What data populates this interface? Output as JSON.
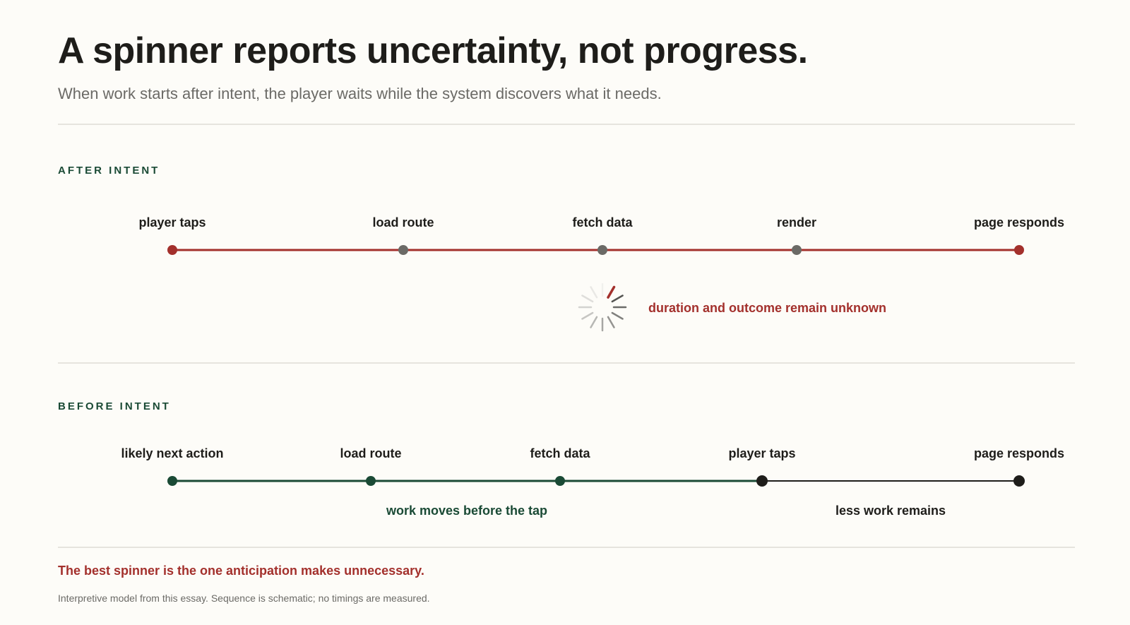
{
  "title": "A spinner reports uncertainty, not progress.",
  "subtitle": "When work starts after intent, the player waits while the system discovers what it needs.",
  "colors": {
    "red": "#a3302c",
    "green": "#1a4a35",
    "gray": "#6b6a66",
    "black": "#1e1d1a",
    "background": "#fdfcf8"
  },
  "after_intent": {
    "label": "AFTER INTENT",
    "steps": [
      {
        "label": "player taps",
        "kind": "endpoint"
      },
      {
        "label": "load route",
        "kind": "step"
      },
      {
        "label": "fetch data",
        "kind": "step"
      },
      {
        "label": "render",
        "kind": "step"
      },
      {
        "label": "page responds",
        "kind": "endpoint"
      }
    ],
    "annotation": "duration and outcome remain unknown",
    "indicator_icon": "spinner-icon"
  },
  "before_intent": {
    "label": "BEFORE INTENT",
    "steps": [
      {
        "label": "likely next action",
        "kind": "anticipated"
      },
      {
        "label": "load route",
        "kind": "anticipated"
      },
      {
        "label": "fetch data",
        "kind": "anticipated"
      },
      {
        "label": "player taps",
        "kind": "intent"
      },
      {
        "label": "page responds",
        "kind": "intent"
      }
    ],
    "annotation_left": "work moves before the tap",
    "annotation_right": "less work remains"
  },
  "footer": {
    "takeaway": "The best spinner is the one anticipation makes unnecessary.",
    "note": "Interpretive model from this essay. Sequence is schematic; no timings are measured."
  }
}
